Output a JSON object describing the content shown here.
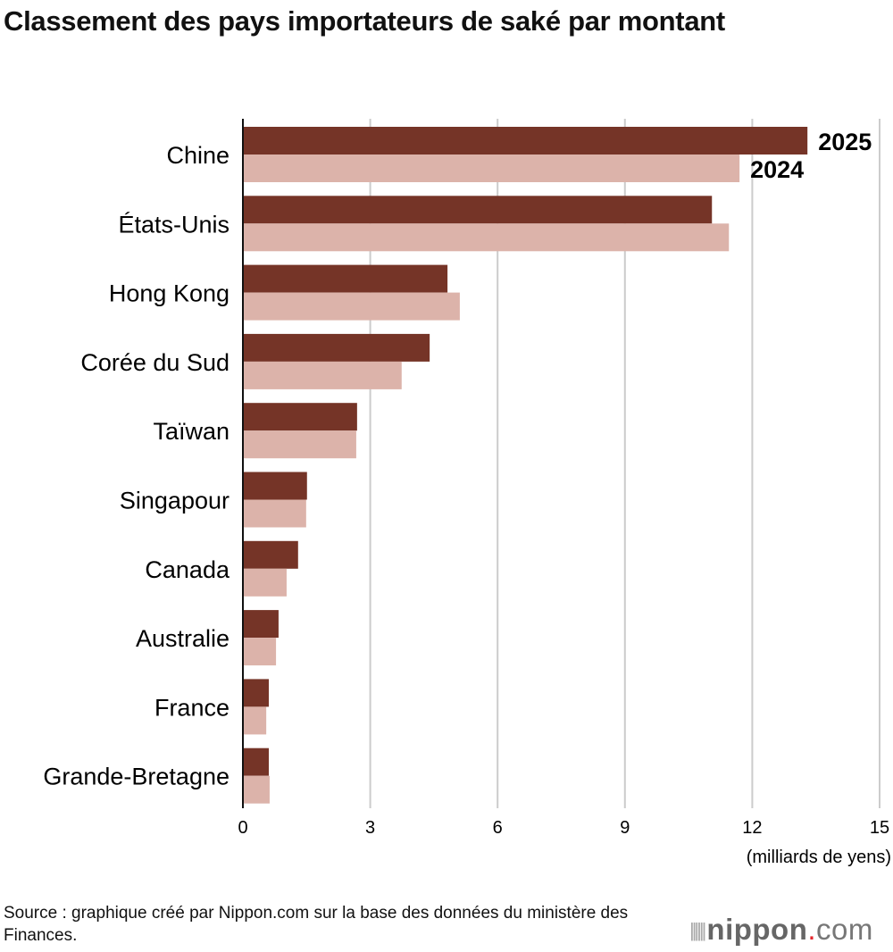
{
  "title": "Classement des pays importateurs de saké par montant",
  "source": "Source : graphique créé par Nippon.com sur la base des données du ministère des Finances.",
  "logo": {
    "brand": "nippon",
    "dot": ".",
    "suffix": "com"
  },
  "colors": {
    "y2025": "#753427",
    "y2024": "#dcb3aa",
    "grid": "#cccccc"
  },
  "chart_data": {
    "type": "bar",
    "orientation": "horizontal",
    "title": "Classement des pays importateurs de saké par montant",
    "xlabel": "(milliards de yens)",
    "xlim": [
      0,
      15
    ],
    "xticks": [
      0,
      3,
      6,
      9,
      12,
      15
    ],
    "grid": true,
    "categories": [
      "Chine",
      "États-Unis",
      "Hong Kong",
      "Corée du Sud",
      "Taïwan",
      "Singapour",
      "Canada",
      "Australie",
      "France",
      "Grande-Bretagne"
    ],
    "series": [
      {
        "name": "2025",
        "values": [
          13.3,
          11.05,
          4.82,
          4.4,
          2.69,
          1.51,
          1.3,
          0.84,
          0.61,
          0.61
        ]
      },
      {
        "name": "2024",
        "values": [
          11.7,
          11.45,
          5.11,
          3.74,
          2.67,
          1.49,
          1.03,
          0.78,
          0.55,
          0.63
        ]
      }
    ]
  }
}
